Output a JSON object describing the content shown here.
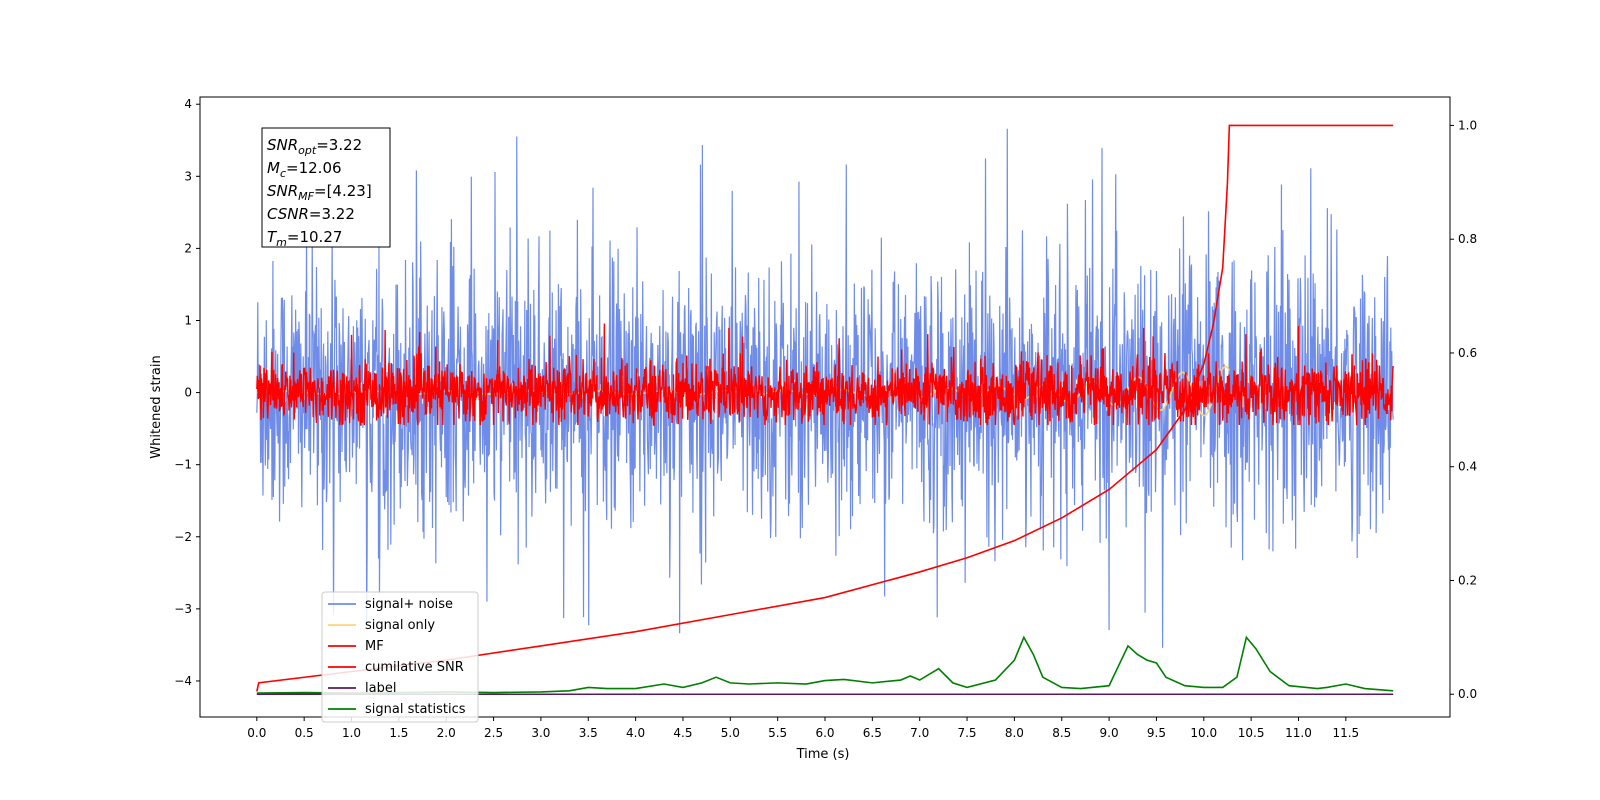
{
  "chart_data": {
    "type": "line",
    "xlabel": "Time (s)",
    "ylabel": "Whitened strain",
    "xlim": [
      -0.6,
      12.6
    ],
    "ylim": [
      -4.5,
      4.1
    ],
    "y2lim": [
      -0.04,
      1.05
    ],
    "x_ticks": [
      "0.0",
      "0.5",
      "1.0",
      "1.5",
      "2.0",
      "2.5",
      "3.0",
      "3.5",
      "4.0",
      "4.5",
      "5.0",
      "5.5",
      "6.0",
      "6.5",
      "7.0",
      "7.5",
      "8.0",
      "8.5",
      "9.0",
      "9.5",
      "10.0",
      "10.5",
      "11.0",
      "11.5"
    ],
    "y_ticks": [
      "4",
      "3",
      "2",
      "1",
      "0",
      "−1",
      "−2",
      "−3",
      "−4"
    ],
    "y2_ticks": [
      "1.0",
      "0.8",
      "0.6",
      "0.4",
      "0.2",
      "0.0"
    ],
    "grid": false,
    "legend_placement": "lower-left",
    "annotation": {
      "lines": [
        {
          "label": "SNR",
          "sub": "opt",
          "value": "=3.22"
        },
        {
          "label": "M",
          "sub": "c",
          "value": "=12.06"
        },
        {
          "label": "SNR",
          "sub": "MF",
          "value": "=[4.23]"
        },
        {
          "label": "CSNR",
          "sub": "",
          "value": "=3.22"
        },
        {
          "label": "T",
          "sub": "m",
          "value": "=10.27"
        }
      ]
    },
    "series": [
      {
        "name": "signal+ noise",
        "color": "#6f8de8",
        "axis": "left",
        "style": "noise",
        "x_range": [
          0.0,
          12.0
        ],
        "std": 0.9,
        "y_extremes": [
          -3.65,
          3.7
        ]
      },
      {
        "name": "signal only",
        "color": "#fdd27e",
        "axis": "left",
        "style": "chirp",
        "x_range": [
          0.0,
          10.27
        ]
      },
      {
        "name": "MF",
        "color": "#ff0000",
        "axis": "left",
        "style": "noise",
        "x_range": [
          0.0,
          12.0
        ],
        "std": 0.22,
        "y_extremes": [
          -0.45,
          1.0
        ]
      },
      {
        "name": "cumilative SNR",
        "color": "#ff0000",
        "axis": "right",
        "points": [
          [
            0.0,
            0.005
          ],
          [
            0.02,
            0.02
          ],
          [
            1.0,
            0.04
          ],
          [
            2.0,
            0.06
          ],
          [
            3.0,
            0.085
          ],
          [
            4.0,
            0.11
          ],
          [
            5.0,
            0.14
          ],
          [
            6.0,
            0.17
          ],
          [
            7.0,
            0.215
          ],
          [
            7.5,
            0.24
          ],
          [
            8.0,
            0.27
          ],
          [
            8.5,
            0.31
          ],
          [
            9.0,
            0.36
          ],
          [
            9.5,
            0.43
          ],
          [
            9.8,
            0.5
          ],
          [
            10.0,
            0.58
          ],
          [
            10.1,
            0.65
          ],
          [
            10.2,
            0.75
          ],
          [
            10.25,
            0.9
          ],
          [
            10.27,
            1.0
          ],
          [
            12.0,
            1.0
          ]
        ]
      },
      {
        "name": "label",
        "color": "#5b1a5f",
        "axis": "right",
        "points": [
          [
            0.0,
            0.0
          ],
          [
            12.0,
            0.0
          ]
        ]
      },
      {
        "name": "signal statistics",
        "color": "#008000",
        "axis": "right",
        "points": [
          [
            0.0,
            0.002
          ],
          [
            0.5,
            0.003
          ],
          [
            1.0,
            0.002
          ],
          [
            1.5,
            0.003
          ],
          [
            2.0,
            0.004
          ],
          [
            2.5,
            0.003
          ],
          [
            3.0,
            0.004
          ],
          [
            3.3,
            0.006
          ],
          [
            3.5,
            0.012
          ],
          [
            3.7,
            0.01
          ],
          [
            4.0,
            0.01
          ],
          [
            4.3,
            0.018
          ],
          [
            4.5,
            0.012
          ],
          [
            4.7,
            0.02
          ],
          [
            4.85,
            0.03
          ],
          [
            5.0,
            0.02
          ],
          [
            5.2,
            0.018
          ],
          [
            5.5,
            0.02
          ],
          [
            5.8,
            0.018
          ],
          [
            6.0,
            0.024
          ],
          [
            6.2,
            0.026
          ],
          [
            6.5,
            0.02
          ],
          [
            6.8,
            0.025
          ],
          [
            6.9,
            0.032
          ],
          [
            7.0,
            0.025
          ],
          [
            7.2,
            0.045
          ],
          [
            7.35,
            0.02
          ],
          [
            7.5,
            0.012
          ],
          [
            7.8,
            0.025
          ],
          [
            8.0,
            0.06
          ],
          [
            8.1,
            0.1
          ],
          [
            8.2,
            0.07
          ],
          [
            8.3,
            0.03
          ],
          [
            8.5,
            0.012
          ],
          [
            8.7,
            0.01
          ],
          [
            9.0,
            0.015
          ],
          [
            9.1,
            0.05
          ],
          [
            9.2,
            0.085
          ],
          [
            9.3,
            0.07
          ],
          [
            9.4,
            0.06
          ],
          [
            9.5,
            0.055
          ],
          [
            9.6,
            0.03
          ],
          [
            9.8,
            0.015
          ],
          [
            10.0,
            0.012
          ],
          [
            10.2,
            0.012
          ],
          [
            10.35,
            0.03
          ],
          [
            10.45,
            0.1
          ],
          [
            10.55,
            0.08
          ],
          [
            10.7,
            0.04
          ],
          [
            10.9,
            0.015
          ],
          [
            11.2,
            0.01
          ],
          [
            11.3,
            0.012
          ],
          [
            11.5,
            0.018
          ],
          [
            11.7,
            0.01
          ],
          [
            12.0,
            0.006
          ]
        ]
      }
    ]
  }
}
